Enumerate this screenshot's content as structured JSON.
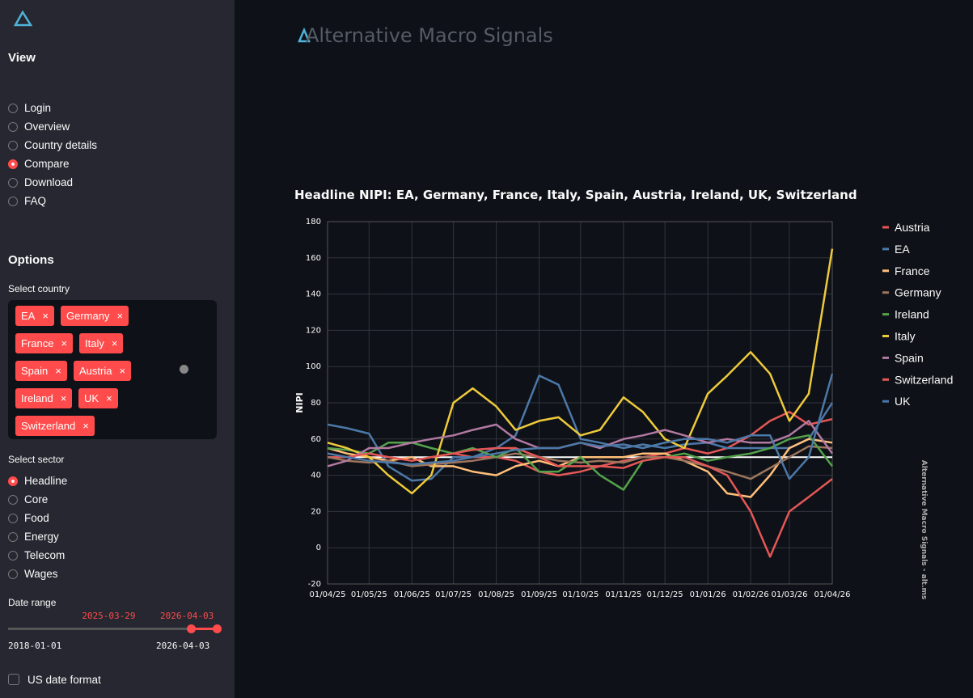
{
  "sidebar": {
    "view_label": "View",
    "views": [
      "Login",
      "Overview",
      "Country details",
      "Compare",
      "Download",
      "FAQ"
    ],
    "selected_view": 3,
    "options_label": "Options",
    "country_label": "Select country",
    "countries": [
      "EA",
      "Germany",
      "France",
      "Italy",
      "Spain",
      "Austria",
      "Ireland",
      "UK",
      "Switzerland"
    ],
    "sector_label": "Select sector",
    "sectors": [
      "Headline",
      "Core",
      "Food",
      "Energy",
      "Telecom",
      "Wages"
    ],
    "selected_sector": 0,
    "date_label": "Date range",
    "range_start": "2025-03-29",
    "range_end": "2026-04-03",
    "range_min": "2018-01-01",
    "range_max": "2026-04-03",
    "us_date_label": "US date format"
  },
  "header": {
    "brand_first": "A",
    "brand_rest": "lternative Macro Signals"
  },
  "chart_data": {
    "type": "line",
    "title": "Headline NIPI: EA, Germany, France, Italy, Spain, Austria, Ireland, UK, Switzerland",
    "y_label": "NIPI",
    "watermark": "Alternative Macro Signals - alt.ms",
    "x": [
      "2025-04-01",
      "2025-04-15",
      "2025-05-01",
      "2025-05-15",
      "2025-06-01",
      "2025-06-15",
      "2025-07-01",
      "2025-07-15",
      "2025-08-01",
      "2025-08-15",
      "2025-09-01",
      "2025-09-15",
      "2025-10-01",
      "2025-10-15",
      "2025-11-01",
      "2025-11-15",
      "2025-12-01",
      "2025-12-15",
      "2026-01-01",
      "2026-01-15",
      "2026-02-01",
      "2026-02-15",
      "2026-03-01",
      "2026-03-15",
      "2026-04-01"
    ],
    "xlim": [
      "2025-04-01",
      "2026-04-01"
    ],
    "xticks": [
      {
        "value": "2025-04-01",
        "label": "01/04/25"
      },
      {
        "value": "2025-05-01",
        "label": "01/05/25"
      },
      {
        "value": "2025-06-01",
        "label": "01/06/25"
      },
      {
        "value": "2025-07-01",
        "label": "01/07/25"
      },
      {
        "value": "2025-08-01",
        "label": "01/08/25"
      },
      {
        "value": "2025-09-01",
        "label": "01/09/25"
      },
      {
        "value": "2025-10-01",
        "label": "01/10/25"
      },
      {
        "value": "2025-11-01",
        "label": "01/11/25"
      },
      {
        "value": "2025-12-01",
        "label": "01/12/25"
      },
      {
        "value": "2026-01-01",
        "label": "01/01/26"
      },
      {
        "value": "2026-02-01",
        "label": "01/02/26"
      },
      {
        "value": "2026-03-01",
        "label": "01/03/26"
      },
      {
        "value": "2026-04-01",
        "label": "01/04/26"
      }
    ],
    "ylim": [
      -20,
      180
    ],
    "yticks": [
      -20,
      0,
      20,
      40,
      60,
      80,
      100,
      120,
      140,
      160,
      180
    ],
    "grid": true,
    "reference_line": 50,
    "series": [
      {
        "name": "Austria",
        "color": "#e45756",
        "values": [
          50,
          50,
          52,
          50,
          48,
          50,
          52,
          50,
          50,
          48,
          42,
          40,
          42,
          45,
          48,
          50,
          52,
          55,
          52,
          55,
          62,
          70,
          75,
          68,
          71
        ]
      },
      {
        "name": "EA",
        "color": "#4c78a8",
        "values": [
          68,
          66,
          63,
          45,
          37,
          38,
          50,
          50,
          55,
          62,
          95,
          90,
          60,
          58,
          55,
          57,
          55,
          57,
          58,
          55,
          55,
          55,
          55,
          60,
          80
        ]
      },
      {
        "name": "France",
        "color": "#ffbf79",
        "values": [
          55,
          52,
          50,
          48,
          50,
          45,
          45,
          42,
          40,
          45,
          48,
          45,
          50,
          50,
          50,
          52,
          52,
          48,
          42,
          30,
          28,
          40,
          55,
          60,
          58
        ]
      },
      {
        "name": "Germany",
        "color": "#9d755d",
        "values": [
          50,
          48,
          47,
          48,
          45,
          46,
          47,
          48,
          50,
          52,
          50,
          48,
          47,
          48,
          47,
          50,
          50,
          48,
          45,
          42,
          38,
          44,
          50,
          56,
          55
        ]
      },
      {
        "name": "Ireland",
        "color": "#54a24b",
        "values": [
          55,
          54,
          52,
          58,
          58,
          55,
          52,
          55,
          50,
          55,
          42,
          42,
          50,
          40,
          32,
          48,
          50,
          52,
          48,
          50,
          52,
          55,
          60,
          62,
          45
        ]
      },
      {
        "name": "Italy",
        "color": "#eeca3b",
        "values": [
          58,
          55,
          50,
          40,
          30,
          40,
          80,
          88,
          78,
          65,
          70,
          72,
          62,
          65,
          83,
          75,
          60,
          55,
          85,
          95,
          108,
          96,
          70,
          85,
          165
        ]
      },
      {
        "name": "Spain",
        "color": "#b279a2",
        "values": [
          45,
          48,
          55,
          55,
          58,
          60,
          62,
          65,
          68,
          60,
          55,
          55,
          58,
          55,
          60,
          62,
          65,
          62,
          58,
          60,
          58,
          58,
          62,
          70,
          52
        ]
      },
      {
        "name": "Switzerland",
        "color": "#e45756",
        "values": [
          52,
          50,
          52,
          50,
          48,
          50,
          52,
          54,
          55,
          55,
          50,
          45,
          45,
          45,
          44,
          48,
          50,
          50,
          45,
          40,
          20,
          -5,
          20,
          28,
          38
        ]
      },
      {
        "name": "UK",
        "color": "#4c78a8",
        "values": [
          52,
          50,
          48,
          47,
          46,
          47,
          48,
          50,
          52,
          54,
          55,
          55,
          58,
          56,
          57,
          55,
          58,
          60,
          60,
          58,
          62,
          62,
          38,
          50,
          96
        ]
      }
    ]
  }
}
